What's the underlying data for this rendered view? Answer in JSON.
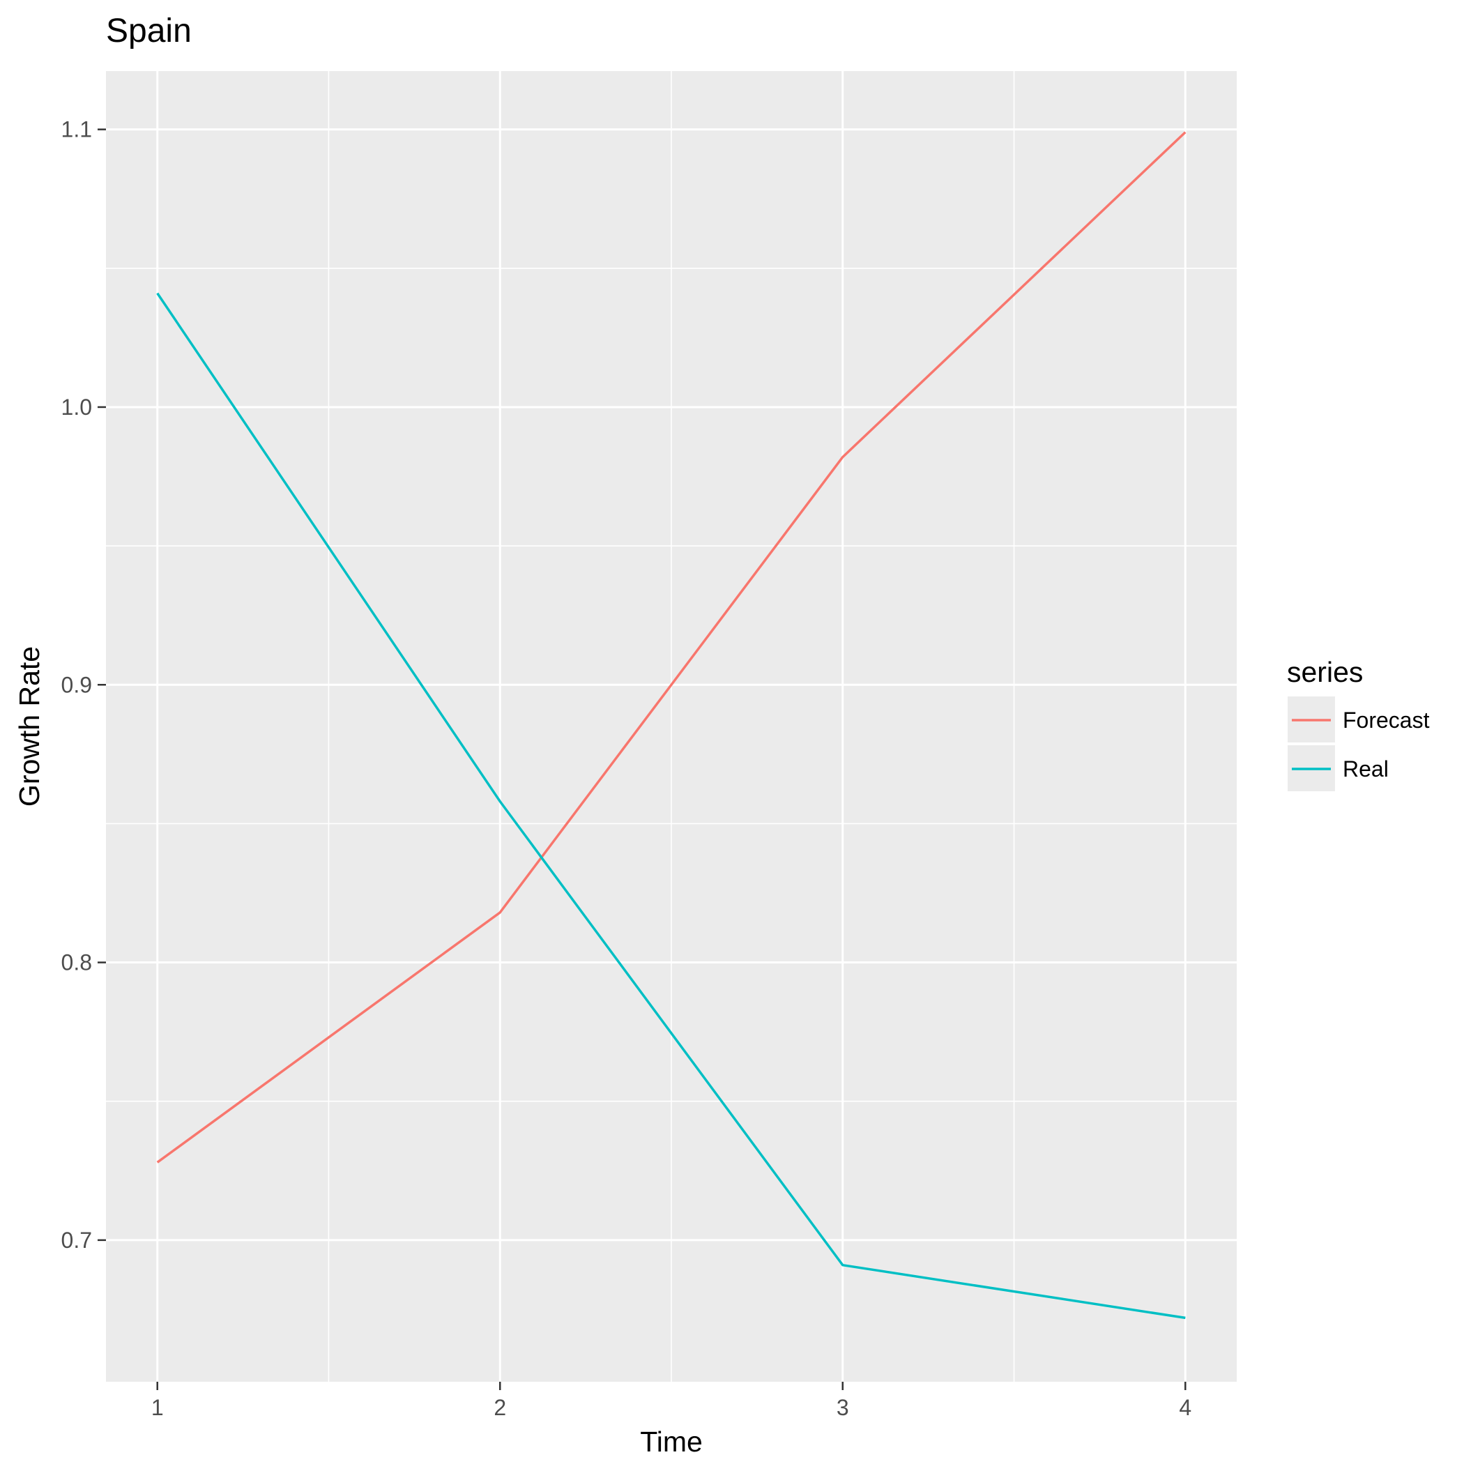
{
  "chart_data": {
    "type": "line",
    "title": "Spain",
    "xlabel": "Time",
    "ylabel": "Growth Rate",
    "x": [
      1,
      2,
      3,
      4
    ],
    "x_ticks": [
      "1",
      "2",
      "3",
      "4"
    ],
    "y_ticks": [
      "0.7",
      "0.8",
      "0.9",
      "1.0",
      "1.1"
    ],
    "xlim": [
      0.85,
      4.15
    ],
    "ylim": [
      0.649,
      1.121
    ],
    "grid": true,
    "legend": {
      "title": "series",
      "position": "right"
    },
    "series": [
      {
        "name": "Forecast",
        "color": "#F8766D",
        "values": [
          0.728,
          0.818,
          0.982,
          1.099
        ]
      },
      {
        "name": "Real",
        "color": "#00BFC4",
        "values": [
          1.041,
          0.858,
          0.691,
          0.672
        ]
      }
    ]
  },
  "colors": {
    "panel": "#EBEBEB",
    "grid": "#FFFFFF",
    "tick": "#333333"
  }
}
